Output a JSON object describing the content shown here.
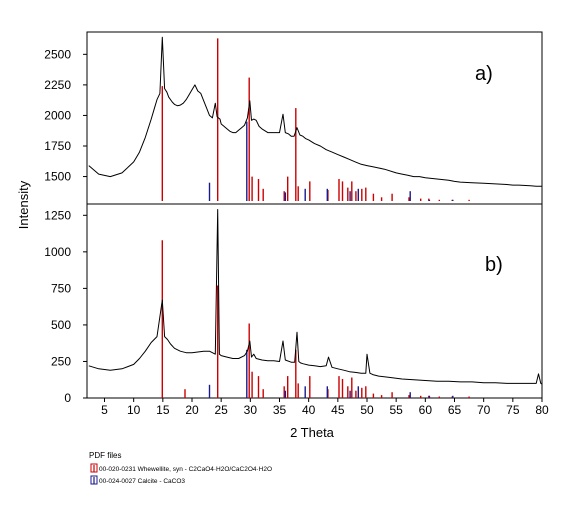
{
  "figure": {
    "y_label": "Intensity",
    "x_label": "2 Theta",
    "x_ticks": [
      5,
      10,
      15,
      20,
      25,
      30,
      35,
      40,
      45,
      50,
      55,
      60,
      65,
      70,
      75,
      80
    ],
    "legend": {
      "title": "PDF files",
      "entries": [
        {
          "text": "00-020-0231  Whewellite, syn - C2CaO4·H2O/CaC2O4·H2O",
          "color": "#cc0000"
        },
        {
          "text": "00-024-0027  Calcite - CaCO3",
          "color": "#1a1a8c"
        }
      ]
    }
  },
  "chart_data": [
    {
      "type": "line",
      "panel_label": "a)",
      "xlim": [
        2,
        80
      ],
      "ylim": [
        1300,
        2650
      ],
      "y_ticks": [
        1500,
        1750,
        2000,
        2250,
        2500
      ],
      "series": [
        {
          "color": "#000000",
          "x": [
            2.3,
            4,
            6,
            8,
            10,
            11,
            12,
            13,
            13.5,
            14,
            14.5,
            14.9,
            15.3,
            15.7,
            16,
            16.6,
            17,
            17.5,
            18,
            18.5,
            19,
            19.5,
            20,
            20.5,
            21,
            21.5,
            22,
            22.5,
            23,
            23.5,
            24,
            24.3,
            24.8,
            25,
            25.5,
            26,
            26.5,
            27,
            27.5,
            28,
            28.5,
            29,
            29.5,
            29.9,
            30.2,
            30.6,
            31,
            31.5,
            32,
            33,
            34,
            35,
            35.6,
            36,
            36.5,
            37,
            37.5,
            38,
            38.5,
            39,
            39.5,
            40,
            41,
            42,
            43,
            44,
            45,
            46,
            47,
            48,
            49,
            50,
            51,
            52,
            53,
            55,
            56,
            57,
            58,
            59,
            60,
            62,
            64,
            65,
            66,
            68,
            70,
            72,
            74,
            75,
            76,
            78,
            79,
            80
          ],
          "y": [
            1590,
            1520,
            1500,
            1530,
            1620,
            1700,
            1820,
            1970,
            2050,
            2130,
            2180,
            2640,
            2220,
            2190,
            2150,
            2110,
            2090,
            2080,
            2085,
            2100,
            2130,
            2170,
            2210,
            2250,
            2200,
            2180,
            2120,
            2060,
            2000,
            1980,
            2100,
            1990,
            1970,
            1930,
            1910,
            1890,
            1870,
            1860,
            1860,
            1880,
            1900,
            1920,
            1980,
            2120,
            1960,
            1970,
            1960,
            1910,
            1890,
            1860,
            1860,
            1860,
            2010,
            1860,
            1850,
            1830,
            1830,
            1900,
            1840,
            1830,
            1810,
            1800,
            1770,
            1750,
            1720,
            1700,
            1680,
            1660,
            1640,
            1620,
            1600,
            1590,
            1580,
            1570,
            1560,
            1530,
            1520,
            1510,
            1500,
            1500,
            1490,
            1480,
            1470,
            1460,
            1455,
            1450,
            1445,
            1440,
            1435,
            1430,
            1430,
            1425,
            1420,
            1420
          ]
        }
      ],
      "reference_lines": [
        {
          "name": "00-020-0231  Whewellite, syn - C2CaO4·H2O/CaC2O4·H2O",
          "color": "#cc0000",
          "x": [
            14.9,
            18.8,
            24.4,
            29.8,
            30.3,
            31.4,
            32.2,
            35.8,
            36.4,
            37.8,
            38.2,
            40.2,
            43.3,
            45.2,
            45.8,
            46.7,
            47.4,
            48.1,
            49.1,
            49.8,
            51.1,
            52.5,
            54.3,
            57.2,
            59.2,
            60.6,
            62.4,
            64.6,
            67.5
          ],
          "y": [
            2240,
            1300,
            2630,
            2310,
            1500,
            1480,
            1400,
            1380,
            1500,
            2060,
            1420,
            1460,
            1390,
            1480,
            1460,
            1410,
            1460,
            1380,
            1400,
            1410,
            1360,
            1330,
            1360,
            1330,
            1320,
            1320,
            1310,
            1310,
            1310
          ]
        },
        {
          "name": "00-024-0027  Calcite - CaCO3",
          "color": "#1a1a8c",
          "x": [
            23.0,
            29.4,
            36.0,
            39.4,
            43.2,
            47.1,
            48.5,
            57.4,
            60.7,
            64.7
          ],
          "y": [
            1450,
            1950,
            1370,
            1400,
            1400,
            1380,
            1400,
            1380,
            1310,
            1310
          ]
        }
      ]
    },
    {
      "type": "line",
      "panel_label": "b)",
      "xlim": [
        2,
        80
      ],
      "ylim": [
        0,
        1300
      ],
      "y_ticks": [
        0,
        250,
        500,
        750,
        1000,
        1250
      ],
      "series": [
        {
          "color": "#000000",
          "x": [
            2.3,
            4,
            6,
            8,
            10,
            11,
            12,
            13,
            14,
            14.9,
            15.3,
            15.8,
            16.3,
            17,
            18,
            19,
            20,
            21,
            22,
            23,
            24,
            24.4,
            24.7,
            25,
            26,
            27,
            28,
            29,
            29.5,
            29.9,
            30.2,
            30.6,
            31,
            32,
            33,
            34,
            35,
            35.6,
            36,
            37,
            37.6,
            38,
            38.3,
            38.6,
            39,
            40,
            41,
            42,
            43,
            43.4,
            44,
            45,
            46,
            47,
            48,
            49,
            49.8,
            50,
            50.5,
            51,
            52,
            54,
            56,
            58,
            60,
            62,
            64,
            66,
            68,
            70,
            72,
            74,
            76,
            78,
            79,
            79.4,
            79.8,
            80
          ],
          "y": [
            220,
            200,
            190,
            200,
            230,
            270,
            320,
            380,
            420,
            670,
            420,
            400,
            370,
            340,
            320,
            310,
            310,
            315,
            320,
            320,
            300,
            1290,
            300,
            290,
            280,
            270,
            270,
            290,
            320,
            390,
            280,
            300,
            270,
            260,
            255,
            255,
            250,
            390,
            260,
            245,
            245,
            450,
            250,
            240,
            235,
            225,
            220,
            215,
            220,
            280,
            210,
            200,
            190,
            180,
            175,
            170,
            170,
            300,
            170,
            160,
            150,
            140,
            130,
            125,
            120,
            115,
            115,
            110,
            110,
            105,
            105,
            100,
            100,
            100,
            100,
            165,
            100,
            95
          ]
        }
      ],
      "reference_lines": [
        {
          "name": "00-020-0231  Whewellite, syn - C2CaO4·H2O/CaC2O4·H2O",
          "color": "#cc0000",
          "x": [
            14.9,
            18.8,
            24.4,
            29.8,
            30.3,
            31.4,
            32.2,
            35.8,
            36.4,
            37.8,
            38.2,
            40.2,
            43.3,
            45.2,
            45.8,
            46.7,
            47.4,
            48.1,
            49.1,
            49.8,
            51.1,
            52.5,
            54.3,
            57.2,
            59.2,
            60.6,
            62.4,
            64.6,
            67.5
          ],
          "y": [
            1080,
            60,
            770,
            510,
            180,
            150,
            60,
            80,
            150,
            330,
            100,
            150,
            60,
            150,
            130,
            80,
            140,
            50,
            70,
            80,
            30,
            20,
            40,
            20,
            15,
            15,
            10,
            10,
            10
          ]
        },
        {
          "name": "00-024-0027  Calcite - CaCO3",
          "color": "#1a1a8c",
          "x": [
            23.0,
            29.4,
            36.0,
            39.4,
            43.2,
            47.1,
            48.5,
            57.4,
            60.7,
            64.7
          ],
          "y": [
            90,
            330,
            50,
            80,
            80,
            50,
            80,
            40,
            15,
            15
          ]
        }
      ]
    }
  ]
}
